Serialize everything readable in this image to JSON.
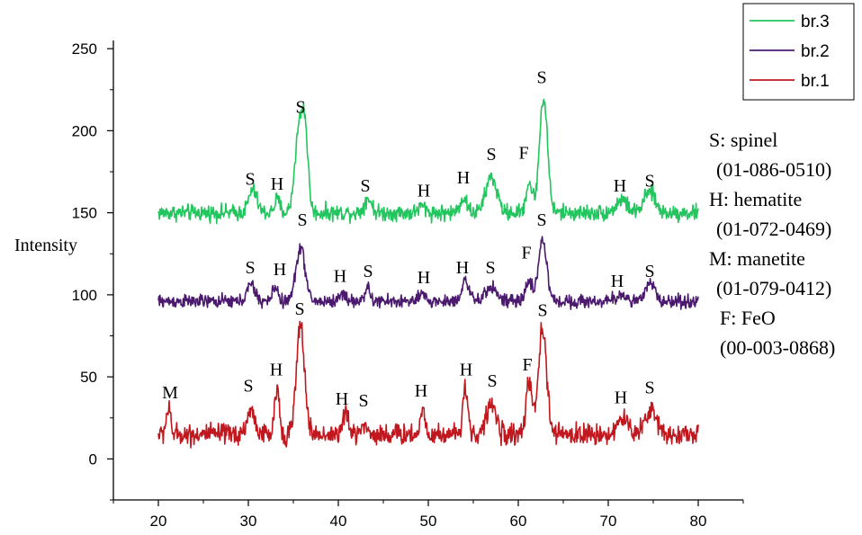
{
  "chart_data": {
    "type": "line",
    "title": "",
    "xlabel": "",
    "ylabel": "Intensity",
    "xlim": [
      15,
      85
    ],
    "ylim": [
      -25,
      255
    ],
    "xticks": [
      20,
      30,
      40,
      50,
      60,
      70,
      80
    ],
    "yticks": [
      0,
      50,
      100,
      150,
      200,
      250
    ],
    "grid": false,
    "legend_position": "top-right",
    "series": [
      {
        "name": "br.3",
        "color": "#22c55e",
        "baseline": 150,
        "noise": 3,
        "peaks": [
          [
            30.5,
            14,
            0.45
          ],
          [
            33.2,
            8,
            0.3
          ],
          [
            35.6,
            48,
            0.45
          ],
          [
            36.3,
            45,
            0.35
          ],
          [
            43.3,
            9,
            0.4
          ],
          [
            49.3,
            4,
            0.4
          ],
          [
            53.9,
            9,
            0.4
          ],
          [
            57.0,
            22,
            0.6
          ],
          [
            61.2,
            18,
            0.35
          ],
          [
            62.8,
            70,
            0.45
          ],
          [
            71.5,
            8,
            0.6
          ],
          [
            74.6,
            13,
            0.6
          ]
        ]
      },
      {
        "name": "br.2",
        "color": "#4b1a6e",
        "baseline": 96,
        "noise": 2.5,
        "peaks": [
          [
            30.3,
            10,
            0.45
          ],
          [
            33.0,
            9,
            0.3
          ],
          [
            35.8,
            33,
            0.5
          ],
          [
            40.5,
            5,
            0.35
          ],
          [
            43.2,
            8,
            0.3
          ],
          [
            49.3,
            4,
            0.35
          ],
          [
            54.1,
            13,
            0.4
          ],
          [
            57.0,
            9,
            0.6
          ],
          [
            61.2,
            13,
            0.35
          ],
          [
            62.7,
            38,
            0.45
          ],
          [
            71.5,
            4,
            0.6
          ],
          [
            74.7,
            11,
            0.5
          ]
        ]
      },
      {
        "name": "br.1",
        "color": "#c0181e",
        "baseline": 15,
        "noise": 4,
        "peaks": [
          [
            21.1,
            15,
            0.25
          ],
          [
            30.3,
            14,
            0.45
          ],
          [
            33.2,
            28,
            0.25
          ],
          [
            35.8,
            66,
            0.45
          ],
          [
            40.8,
            13,
            0.3
          ],
          [
            42.8,
            6,
            0.35
          ],
          [
            49.4,
            16,
            0.25
          ],
          [
            54.1,
            28,
            0.3
          ],
          [
            57.0,
            19,
            0.5
          ],
          [
            61.2,
            30,
            0.35
          ],
          [
            62.7,
            64,
            0.45
          ],
          [
            71.6,
            9,
            0.6
          ],
          [
            74.7,
            14,
            0.7
          ]
        ]
      }
    ],
    "xrange": [
      20,
      80
    ],
    "annotations": [
      {
        "text": "S",
        "x": 30.2,
        "y": 167
      },
      {
        "text": "H",
        "x": 33.2,
        "y": 164
      },
      {
        "text": "S",
        "x": 35.8,
        "y": 211
      },
      {
        "text": "S",
        "x": 43.0,
        "y": 163
      },
      {
        "text": "H",
        "x": 49.5,
        "y": 160
      },
      {
        "text": "H",
        "x": 53.9,
        "y": 168
      },
      {
        "text": "S",
        "x": 57.0,
        "y": 182
      },
      {
        "text": "F",
        "x": 60.6,
        "y": 183
      },
      {
        "text": "S",
        "x": 62.6,
        "y": 229
      },
      {
        "text": "H",
        "x": 71.3,
        "y": 163
      },
      {
        "text": "S",
        "x": 74.6,
        "y": 166
      },
      {
        "text": "S",
        "x": 30.2,
        "y": 113
      },
      {
        "text": "H",
        "x": 33.5,
        "y": 112
      },
      {
        "text": "S",
        "x": 36.0,
        "y": 142
      },
      {
        "text": "H",
        "x": 40.2,
        "y": 108
      },
      {
        "text": "S",
        "x": 43.3,
        "y": 111
      },
      {
        "text": "H",
        "x": 49.5,
        "y": 107
      },
      {
        "text": "H",
        "x": 53.8,
        "y": 113
      },
      {
        "text": "S",
        "x": 56.9,
        "y": 113
      },
      {
        "text": "F",
        "x": 60.9,
        "y": 122
      },
      {
        "text": "S",
        "x": 62.6,
        "y": 142
      },
      {
        "text": "H",
        "x": 71.0,
        "y": 105
      },
      {
        "text": "S",
        "x": 74.6,
        "y": 111
      },
      {
        "text": "M",
        "x": 21.3,
        "y": 37
      },
      {
        "text": "S",
        "x": 30.0,
        "y": 41
      },
      {
        "text": "H",
        "x": 33.1,
        "y": 51
      },
      {
        "text": "S",
        "x": 35.7,
        "y": 88
      },
      {
        "text": "H",
        "x": 40.4,
        "y": 33
      },
      {
        "text": "S",
        "x": 42.8,
        "y": 32
      },
      {
        "text": "H",
        "x": 49.2,
        "y": 38
      },
      {
        "text": "H",
        "x": 54.2,
        "y": 51
      },
      {
        "text": "S",
        "x": 57.1,
        "y": 44
      },
      {
        "text": "F",
        "x": 61.0,
        "y": 54
      },
      {
        "text": "S",
        "x": 62.7,
        "y": 87
      },
      {
        "text": "H",
        "x": 71.4,
        "y": 34
      },
      {
        "text": "S",
        "x": 74.6,
        "y": 40
      }
    ]
  },
  "notes": [
    "S: spinel",
    "(01-086-0510)",
    "H: hematite",
    "(01-072-0469)",
    "M: manetite",
    "(01-079-0412)",
    "F: FeO",
    "(00-003-0868)"
  ]
}
